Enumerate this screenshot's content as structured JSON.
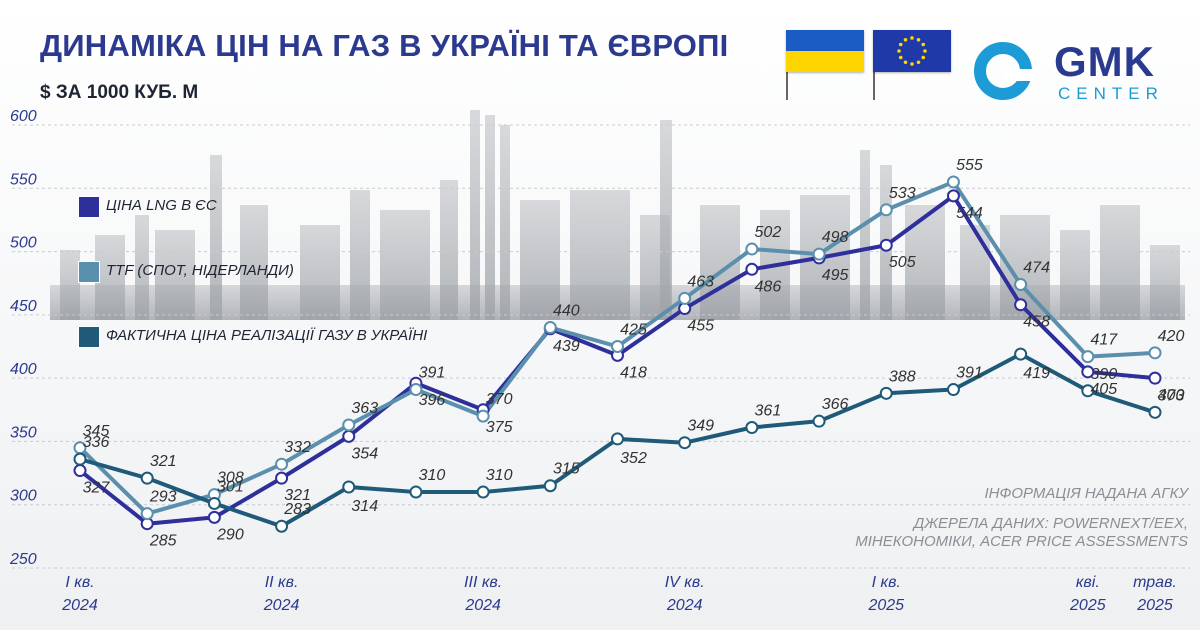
{
  "header": {
    "title": "ДИНАМІКА ЦІН НА ГАЗ В УКРАЇНІ ТА ЄВРОПІ",
    "subtitle": "$ ЗА 1000 КУБ. М"
  },
  "logo": {
    "name": "GMK",
    "sub": "CENTER",
    "icon": "gmk-ring-icon",
    "color_primary": "#2a3a8f",
    "color_accent": "#1d9bd6"
  },
  "flags": [
    {
      "name": "ukraine-flag-icon",
      "colors": [
        "#1a5bc4",
        "#ffd500"
      ]
    },
    {
      "name": "eu-flag-icon",
      "colors": [
        "#1f3aa8",
        "#ffd500"
      ]
    }
  ],
  "notes": {
    "source_info": "ІНФОРМАЦІЯ НАДАНА АГКУ",
    "sources_line1": "ДЖЕРЕЛА ДАНИХ: POWERNEXT/EEX,",
    "sources_line2": "МІНЕКОНОМІКИ, ACER PRICE ASSESSMENTS"
  },
  "chart_data": {
    "type": "line",
    "ylim": [
      250,
      600
    ],
    "yticks": [
      250,
      300,
      350,
      400,
      450,
      500,
      550,
      600
    ],
    "grid": true,
    "legend_position": "top-left",
    "x_tick_labels": [
      {
        "line1": "I кв.",
        "line2": "2024",
        "at": 0
      },
      {
        "line1": "II кв.",
        "line2": "2024",
        "at": 3
      },
      {
        "line1": "III кв.",
        "line2": "2024",
        "at": 6
      },
      {
        "line1": "IV кв.",
        "line2": "2024",
        "at": 9
      },
      {
        "line1": "I кв.",
        "line2": "2025",
        "at": 12
      },
      {
        "line1": "кві.",
        "line2": "2025",
        "at": 15
      },
      {
        "line1": "трав.",
        "line2": "2025",
        "at": 16
      }
    ],
    "series": [
      {
        "name": "ЦІНА LNG В ЄС",
        "color": "#2e2f9a",
        "values": [
          327,
          285,
          290,
          321,
          354,
          396,
          375,
          439,
          418,
          455,
          486,
          495,
          505,
          544,
          458,
          405,
          400
        ],
        "labels": [
          "327",
          "285",
          "290",
          "321",
          "354",
          "396",
          "375",
          "439",
          "418",
          "455",
          "486",
          "495",
          "505",
          "544",
          "458",
          "405",
          "400"
        ]
      },
      {
        "name": "TTF (СПОТ, НІДЕРЛАНДИ)",
        "color": "#5a8fae",
        "values": [
          345,
          293,
          308,
          332,
          363,
          391,
          370,
          440,
          425,
          463,
          502,
          498,
          533,
          555,
          474,
          417,
          420
        ],
        "labels": [
          "345",
          "293",
          "308",
          "332",
          "363",
          "391",
          "370",
          "440",
          "425",
          "463",
          "502",
          "498",
          "533",
          "555",
          "474",
          "417",
          "420"
        ]
      },
      {
        "name": "ФАКТИЧНА ЦІНА РЕАЛІЗАЦІЇ ГАЗУ В УКРАЇНІ",
        "color": "#1f5a78",
        "values": [
          336,
          321,
          301,
          283,
          314,
          310,
          310,
          315,
          352,
          349,
          361,
          366,
          388,
          391,
          419,
          390,
          373
        ],
        "labels": [
          "336",
          "321",
          "301",
          "283",
          "314",
          "310",
          "310",
          "315",
          "352",
          "349",
          "361",
          "366",
          "388",
          "391",
          "419",
          "390",
          "373"
        ]
      }
    ]
  }
}
